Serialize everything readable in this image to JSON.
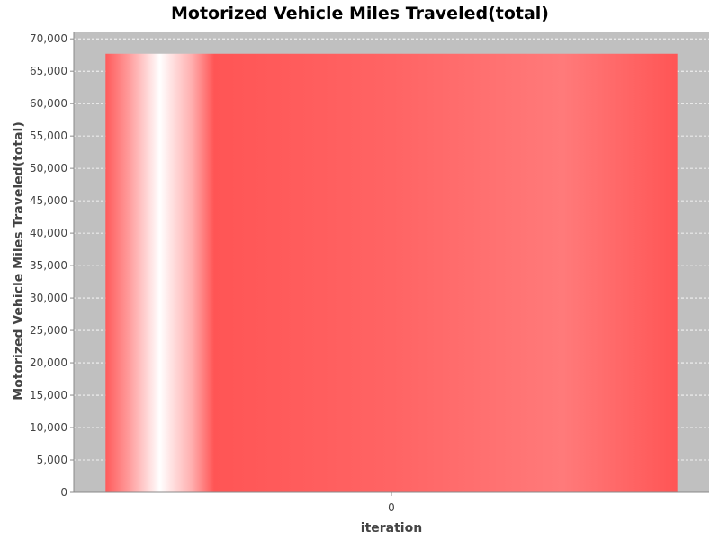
{
  "chart_data": {
    "type": "bar",
    "title": "Motorized Vehicle Miles Traveled(total)",
    "xlabel": "iteration",
    "ylabel": "Motorized Vehicle Miles Traveled(total)",
    "categories": [
      "0"
    ],
    "series": [
      {
        "values": [
          67700
        ]
      }
    ],
    "ylim": [
      0,
      71000
    ],
    "yticks": [
      0,
      5000,
      10000,
      15000,
      20000,
      25000,
      30000,
      35000,
      40000,
      45000,
      50000,
      55000,
      60000,
      65000,
      70000
    ],
    "ytick_labels": [
      "0",
      "5,000",
      "10,000",
      "15,000",
      "20,000",
      "25,000",
      "30,000",
      "35,000",
      "40,000",
      "45,000",
      "50,000",
      "55,000",
      "60,000",
      "65,000",
      "70,000"
    ],
    "grid": true,
    "legend": "none",
    "colors": {
      "plot_background": "#c0c0c0",
      "grid": "#ffffff",
      "bar": "#ff5555",
      "bar_highlight": "#ffffff",
      "axis": "#888888"
    }
  }
}
